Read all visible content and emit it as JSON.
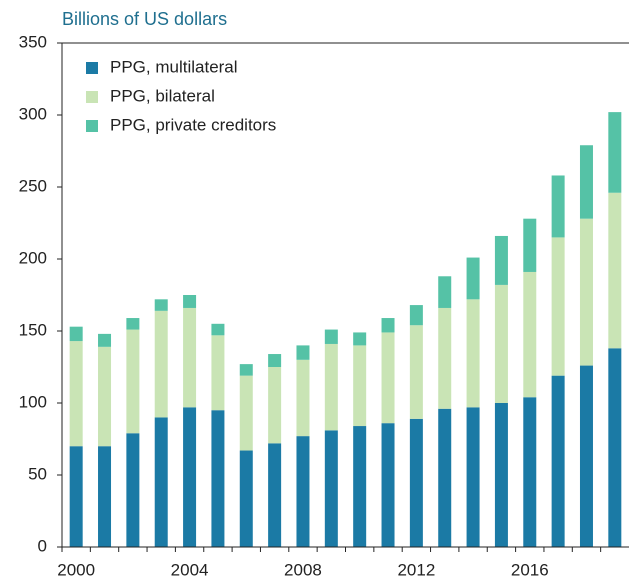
{
  "chart_data": {
    "type": "stacked_bar",
    "ylabel": "Billions of US dollars",
    "categories": [
      "2000",
      null,
      null,
      null,
      "2004",
      null,
      null,
      null,
      "2008",
      null,
      null,
      null,
      "2012",
      null,
      null,
      null,
      "2016",
      null,
      null,
      null
    ],
    "series": [
      {
        "name": "PPG, multilateral",
        "color": "#1b7aa5",
        "values": [
          70,
          70,
          79,
          90,
          97,
          95,
          67,
          72,
          77,
          81,
          84,
          86,
          89,
          96,
          97,
          100,
          104,
          119,
          126,
          138
        ]
      },
      {
        "name": "PPG, bilateral",
        "color": "#c9e4b5",
        "values": [
          73,
          69,
          72,
          74,
          69,
          52,
          52,
          53,
          53,
          60,
          56,
          63,
          65,
          70,
          75,
          82,
          87,
          96,
          102,
          108
        ]
      },
      {
        "name": "PPG, private creditors",
        "color": "#55c2a6",
        "values": [
          10,
          9,
          8,
          8,
          9,
          8,
          8,
          9,
          10,
          10,
          9,
          10,
          14,
          22,
          29,
          34,
          37,
          43,
          51,
          56
        ]
      }
    ],
    "ylim": [
      0,
      350
    ],
    "yticks": [
      0,
      50,
      100,
      150,
      200,
      250,
      300,
      350
    ],
    "legend": "upper left"
  }
}
